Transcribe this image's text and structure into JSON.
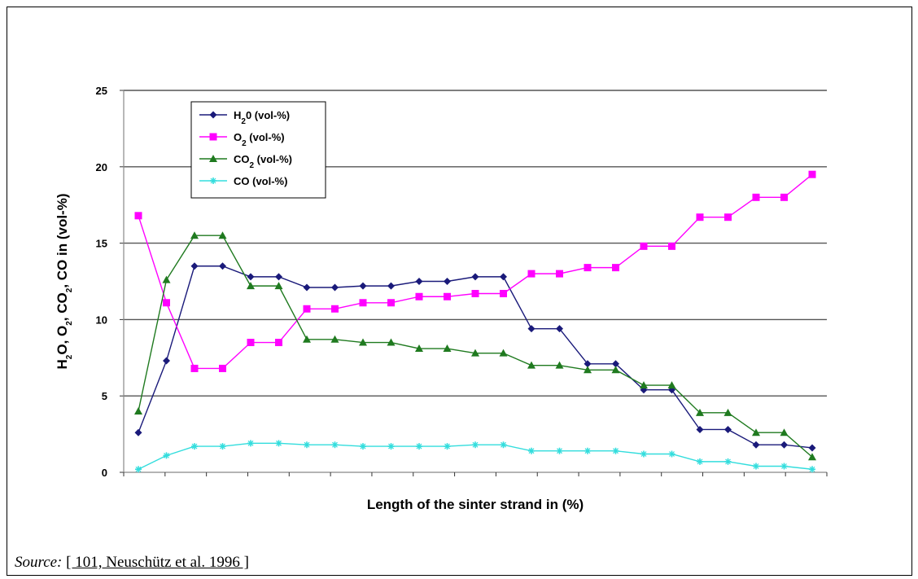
{
  "source": {
    "lead": "Source:",
    "reference": "[ 101, Neuschütz et al. 1996 ]"
  },
  "chart_data": {
    "type": "line",
    "xlabel": "Length of the sinter strand in (%)",
    "ylabel_parts": [
      {
        "t": "H",
        "sub": false
      },
      {
        "t": "2",
        "sub": true
      },
      {
        "t": "O, O",
        "sub": false
      },
      {
        "t": "2",
        "sub": true
      },
      {
        "t": ", CO",
        "sub": false
      },
      {
        "t": "2",
        "sub": true
      },
      {
        "t": ", CO in (vol-%)",
        "sub": false
      }
    ],
    "ylim": [
      0,
      25
    ],
    "yticks": [
      0,
      5,
      10,
      15,
      20,
      25
    ],
    "ytick_labels": [
      "0",
      "5",
      "10",
      "15",
      "20",
      "25"
    ],
    "n_x_ticks": 17,
    "grid": true,
    "legend_position": "top-left",
    "series": [
      {
        "key": "h2o",
        "legend": [
          {
            "t": "H",
            "sub": false
          },
          {
            "t": "2",
            "sub": true
          },
          {
            "t": "0 (vol-%)",
            "sub": false
          }
        ],
        "color": "#1a1a7a",
        "marker": "diamond",
        "values": [
          2.6,
          7.3,
          13.5,
          13.5,
          12.8,
          12.8,
          12.1,
          12.1,
          12.2,
          12.2,
          12.5,
          12.5,
          12.8,
          12.8,
          9.4,
          9.4,
          7.1,
          7.1,
          5.4,
          5.4,
          2.8,
          2.8,
          1.8,
          1.8,
          1.6
        ]
      },
      {
        "key": "o2",
        "legend": [
          {
            "t": "O",
            "sub": false
          },
          {
            "t": "2",
            "sub": true
          },
          {
            "t": " (vol-%)",
            "sub": false
          }
        ],
        "color": "#ff00ff",
        "marker": "square",
        "values": [
          16.8,
          11.1,
          6.8,
          6.8,
          8.5,
          8.5,
          10.7,
          10.7,
          11.1,
          11.1,
          11.5,
          11.5,
          11.7,
          11.7,
          13.0,
          13.0,
          13.4,
          13.4,
          14.8,
          14.8,
          16.7,
          16.7,
          18.0,
          18.0,
          19.5
        ]
      },
      {
        "key": "co2",
        "legend": [
          {
            "t": "CO",
            "sub": false
          },
          {
            "t": "2",
            "sub": true
          },
          {
            "t": " (vol-%)",
            "sub": false
          }
        ],
        "color": "#1f7a1f",
        "marker": "triangle",
        "values": [
          4.0,
          12.6,
          15.5,
          15.5,
          12.2,
          12.2,
          8.7,
          8.7,
          8.5,
          8.5,
          8.1,
          8.1,
          7.8,
          7.8,
          7.0,
          7.0,
          6.7,
          6.7,
          5.7,
          5.7,
          3.9,
          3.9,
          2.6,
          2.6,
          1.0
        ]
      },
      {
        "key": "co",
        "legend": [
          {
            "t": "CO (vol-%)",
            "sub": false
          }
        ],
        "color": "#33dddd",
        "marker": "star",
        "values": [
          0.2,
          1.1,
          1.7,
          1.7,
          1.9,
          1.9,
          1.8,
          1.8,
          1.7,
          1.7,
          1.7,
          1.7,
          1.8,
          1.8,
          1.4,
          1.4,
          1.4,
          1.4,
          1.2,
          1.2,
          0.7,
          0.7,
          0.4,
          0.4,
          0.2
        ]
      }
    ]
  }
}
